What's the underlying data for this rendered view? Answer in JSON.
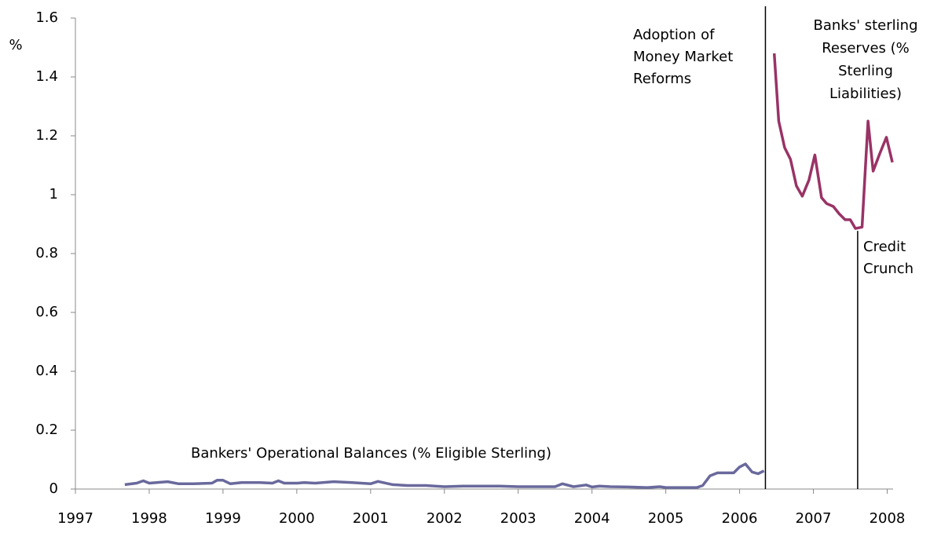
{
  "chart_data": {
    "type": "line",
    "y_label": "%",
    "xlim": [
      1997,
      2008.08
    ],
    "ylim": [
      0,
      1.6
    ],
    "xticks": [
      1997,
      1998,
      1999,
      2000,
      2001,
      2002,
      2003,
      2004,
      2005,
      2006,
      2007,
      2008
    ],
    "yticks": [
      0,
      0.2,
      0.4,
      0.6,
      0.8,
      1,
      1.2,
      1.4,
      1.6
    ],
    "grid": false,
    "series": [
      {
        "name": "Bankers' Operational Balances (% Eligible Sterling)",
        "color": "#69699c",
        "x": [
          1997.67,
          1997.83,
          1997.92,
          1998.0,
          1998.25,
          1998.4,
          1998.6,
          1998.85,
          1998.92,
          1999.0,
          1999.1,
          1999.25,
          1999.5,
          1999.67,
          1999.75,
          1999.83,
          2000.0,
          2000.1,
          2000.25,
          2000.5,
          2000.75,
          2001.0,
          2001.1,
          2001.3,
          2001.5,
          2001.75,
          2002.0,
          2002.25,
          2002.5,
          2002.75,
          2003.0,
          2003.25,
          2003.5,
          2003.6,
          2003.75,
          2003.92,
          2004.0,
          2004.1,
          2004.25,
          2004.5,
          2004.75,
          2004.92,
          2005.0,
          2005.25,
          2005.42,
          2005.5,
          2005.6,
          2005.7,
          2005.92,
          2006.0,
          2006.08,
          2006.17,
          2006.25,
          2006.33
        ],
        "values": [
          0.015,
          0.02,
          0.028,
          0.02,
          0.025,
          0.018,
          0.018,
          0.02,
          0.03,
          0.03,
          0.018,
          0.022,
          0.022,
          0.02,
          0.028,
          0.02,
          0.02,
          0.022,
          0.02,
          0.025,
          0.022,
          0.018,
          0.026,
          0.015,
          0.012,
          0.012,
          0.008,
          0.01,
          0.01,
          0.01,
          0.008,
          0.008,
          0.008,
          0.018,
          0.008,
          0.014,
          0.007,
          0.01,
          0.008,
          0.007,
          0.005,
          0.008,
          0.005,
          0.005,
          0.005,
          0.012,
          0.045,
          0.055,
          0.055,
          0.075,
          0.085,
          0.058,
          0.052,
          0.062
        ]
      },
      {
        "name": "Banks' sterling Reserves (% Sterling Liabilities)",
        "color": "#993366",
        "x": [
          2006.47,
          2006.53,
          2006.61,
          2006.69,
          2006.77,
          2006.85,
          2006.94,
          2007.02,
          2007.11,
          2007.18,
          2007.27,
          2007.35,
          2007.43,
          2007.5,
          2007.57,
          2007.66,
          2007.74,
          2007.81,
          2007.9,
          2007.99,
          2008.07
        ],
        "values": [
          1.48,
          1.25,
          1.16,
          1.12,
          1.03,
          0.995,
          1.05,
          1.135,
          0.99,
          0.97,
          0.96,
          0.935,
          0.915,
          0.915,
          0.885,
          0.89,
          1.25,
          1.08,
          1.14,
          1.195,
          1.11
        ]
      }
    ],
    "events": [
      {
        "x": 2006.35,
        "label": "Adoption of Money Market Reforms"
      },
      {
        "x": 2007.6,
        "label": "Credit Crunch"
      }
    ]
  }
}
